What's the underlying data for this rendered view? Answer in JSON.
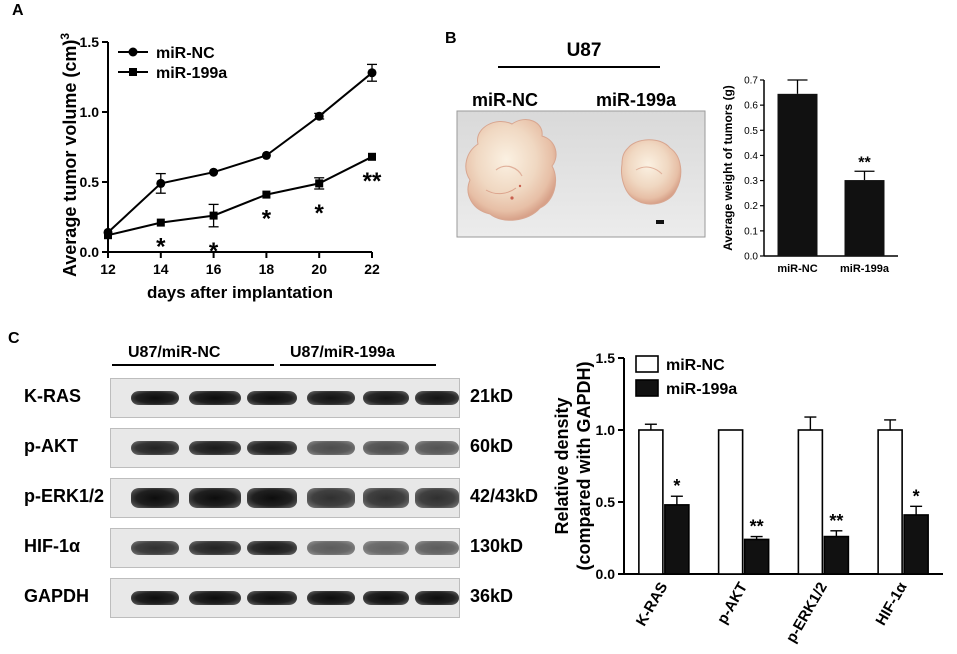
{
  "panels": {
    "A": {
      "label": "A"
    },
    "B": {
      "label": "B",
      "photo": {
        "cell_line": "U87",
        "labels": [
          "miR-NC",
          "miR-199a"
        ]
      }
    },
    "C": {
      "label": "C",
      "blot": {
        "groups": [
          "U87/miR-NC",
          "U87/miR-199a"
        ],
        "rows": [
          {
            "protein": "K-RAS",
            "size": "21kD",
            "intensity": [
              1.0,
              1.0,
              1.0,
              0.95,
              0.95,
              0.95
            ]
          },
          {
            "protein": "p-AKT",
            "size": "60kD",
            "intensity": [
              0.85,
              0.9,
              0.9,
              0.55,
              0.55,
              0.5
            ]
          },
          {
            "protein": "p-ERK1/2",
            "size": "42/43kD",
            "intensity": [
              1.0,
              1.0,
              1.0,
              0.75,
              0.75,
              0.75
            ]
          },
          {
            "protein": "HIF-1α",
            "size": "130kD",
            "intensity": [
              0.75,
              0.85,
              0.9,
              0.45,
              0.4,
              0.45
            ]
          },
          {
            "protein": "GAPDH",
            "size": "36kD",
            "intensity": [
              1.0,
              1.0,
              1.0,
              1.0,
              1.0,
              1.0
            ]
          }
        ]
      }
    }
  },
  "colors": {
    "axis": "#000000",
    "bar_dark": "#111111",
    "bar_light": "#ffffff"
  },
  "chart_data": [
    {
      "id": "A",
      "type": "line",
      "xlabel": "days after implantation",
      "ylabel": "Average tumor volume (cm)",
      "ylabel_sup": "3",
      "x": [
        12,
        14,
        16,
        18,
        20,
        22
      ],
      "xlim": [
        12,
        22
      ],
      "ylim": [
        0,
        1.5
      ],
      "xticks": [
        "12",
        "14",
        "16",
        "18",
        "20",
        "22"
      ],
      "yticks": [
        "0.0",
        "0.5",
        "1.0",
        "1.5"
      ],
      "series": [
        {
          "name": "miR-NC",
          "marker": "circle",
          "values": [
            0.14,
            0.49,
            0.57,
            0.69,
            0.97,
            1.28
          ],
          "errors": [
            0.0,
            0.07,
            0.0,
            0.0,
            0.02,
            0.06
          ]
        },
        {
          "name": "miR-199a",
          "marker": "square",
          "values": [
            0.12,
            0.21,
            0.26,
            0.41,
            0.49,
            0.68
          ],
          "errors": [
            0.0,
            0.0,
            0.08,
            0.0,
            0.04,
            0.0
          ]
        }
      ],
      "annotations": [
        {
          "x": 14,
          "text": "*"
        },
        {
          "x": 16,
          "text": "*"
        },
        {
          "x": 18,
          "text": "*"
        },
        {
          "x": 20,
          "text": "*"
        },
        {
          "x": 22,
          "text": "**"
        }
      ],
      "grid": false,
      "legend": "top-left"
    },
    {
      "id": "B",
      "type": "bar",
      "categories": [
        "miR-NC",
        "miR-199a"
      ],
      "values": [
        0.645,
        0.302
      ],
      "errors": [
        0.055,
        0.035
      ],
      "ylabel": "Average weight of tumors (g)",
      "ylim": [
        0,
        0.7
      ],
      "yticks": [
        "0.0",
        "0.1",
        "0.2",
        "0.3",
        "0.4",
        "0.5",
        "0.6",
        "0.7"
      ],
      "annotations": [
        {
          "category": "miR-199a",
          "text": "**"
        }
      ],
      "grid": false
    },
    {
      "id": "C",
      "type": "bar",
      "categories": [
        "K-RAS",
        "p-AKT",
        "p-ERK1/2",
        "HIF-1α"
      ],
      "series": [
        {
          "name": "miR-NC",
          "values": [
            1.0,
            1.0,
            1.0,
            1.0
          ],
          "errors": [
            0.04,
            0.0,
            0.09,
            0.07
          ]
        },
        {
          "name": "miR-199a",
          "values": [
            0.48,
            0.24,
            0.26,
            0.41
          ],
          "errors": [
            0.06,
            0.02,
            0.04,
            0.06
          ]
        }
      ],
      "annotations": [
        "*",
        "**",
        "**",
        "*"
      ],
      "ylabel": "Relative density",
      "ylabel2": "(compared with GAPDH)",
      "ylim": [
        0,
        1.5
      ],
      "yticks": [
        "0.0",
        "0.5",
        "1.0",
        "1.5"
      ],
      "grid": false,
      "legend": "top-left"
    }
  ]
}
